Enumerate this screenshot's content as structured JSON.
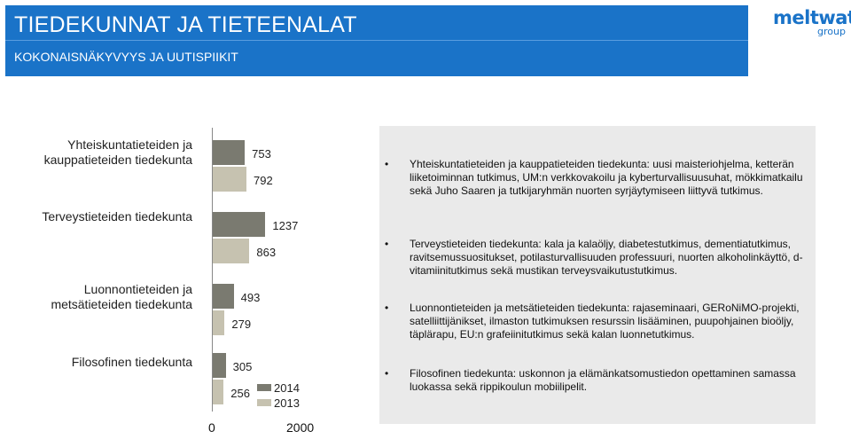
{
  "header": {
    "title": "TIEDEKUNNAT JA TIETEENALAT",
    "subtitle": "KOKONAISNÄKYVYYS JA UUTISPIIKIT"
  },
  "logo": {
    "main": "meltwater",
    "sub": "group"
  },
  "colors": {
    "header_bg": "#1a73c8",
    "series_2014": "#7a7a70",
    "series_2013": "#c6c2b0",
    "panel_bg": "#eaeaea"
  },
  "chart_data": {
    "type": "bar",
    "orientation": "horizontal",
    "categories": [
      "Yhteiskuntatieteiden ja kauppatieteiden tiedekunta",
      "Terveystieteiden tiedekunta",
      "Luonnontieteiden ja metsätieteiden tiedekunta",
      "Filosofinen tiedekunta"
    ],
    "series": [
      {
        "name": "2014",
        "values": [
          753,
          1237,
          493,
          305
        ]
      },
      {
        "name": "2013",
        "values": [
          792,
          863,
          279,
          256
        ]
      }
    ],
    "xlim": [
      0,
      2000
    ],
    "ticks": [
      "0",
      "2000"
    ],
    "legend_placement": "bottom-right",
    "grid": false
  },
  "panel": {
    "items": [
      "Yhteiskuntatieteiden ja kauppatieteiden tiedekunta: uusi maisteriohjelma, ketterän liiketoiminnan tutkimus, UM:n verkkovakoilu ja kyberturvallisuusuhat, mökkimatkailu sekä Juho Saaren ja tutkijaryhmän nuorten syrjäytymiseen liittyvä tutkimus.",
      "Terveystieteiden tiedekunta: kala ja kalaöljy, diabetestutkimus, dementiatutkimus, ravitsemussuositukset, potilasturvallisuuden professuuri, nuorten alkoholinkäyttö, d-vitamiinitutkimus sekä mustikan terveysvaikutustutkimus.",
      "Luonnontieteiden ja metsätieteiden tiedekunta: rajaseminaari, GERoNiMO-projekti, satelliittijänikset, ilmaston tutkimuksen resurssin lisääminen, puupohjainen bioöljy, täplärapu, EU:n grafeiinitutkimus sekä kalan luonnetutkimus.",
      "Filosofinen tiedekunta: uskonnon ja elämänkatsomustiedon opettaminen samassa luokassa sekä rippikoulun mobiilipelit."
    ]
  }
}
